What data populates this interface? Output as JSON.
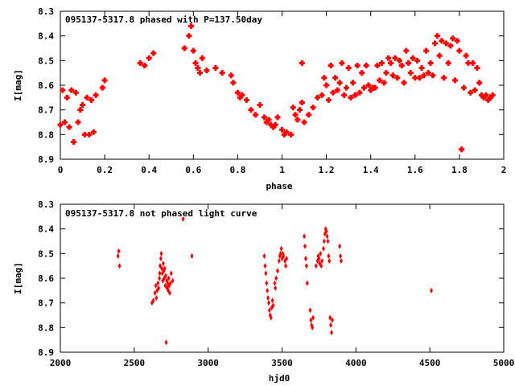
{
  "chart_data": [
    {
      "type": "scatter",
      "title": "095137-5317.8 phased with P=137.50day",
      "xlabel": "phase",
      "ylabel": "I[mag]",
      "xlim": [
        0,
        2
      ],
      "ylim": [
        8.9,
        8.3
      ],
      "y_inverted": true,
      "xticks": [
        "0",
        "0.2",
        "0.4",
        "0.6",
        "0.8",
        "1",
        "1.2",
        "1.4",
        "1.6",
        "1.8",
        "2"
      ],
      "yticks": [
        "8.3",
        "8.4",
        "8.5",
        "8.6",
        "8.7",
        "8.8",
        "8.9"
      ],
      "marker_color": "#ff0000",
      "marker": "cross",
      "points": [
        [
          0.0,
          8.76
        ],
        [
          0.01,
          8.62
        ],
        [
          0.02,
          8.75
        ],
        [
          0.03,
          8.65
        ],
        [
          0.04,
          8.77
        ],
        [
          0.05,
          8.62
        ],
        [
          0.06,
          8.83
        ],
        [
          0.07,
          8.63
        ],
        [
          0.08,
          8.75
        ],
        [
          0.09,
          8.7
        ],
        [
          0.1,
          8.68
        ],
        [
          0.11,
          8.8
        ],
        [
          0.12,
          8.65
        ],
        [
          0.13,
          8.8
        ],
        [
          0.14,
          8.66
        ],
        [
          0.15,
          8.79
        ],
        [
          0.16,
          8.64
        ],
        [
          0.19,
          8.61
        ],
        [
          0.2,
          8.58
        ],
        [
          0.36,
          8.51
        ],
        [
          0.38,
          8.52
        ],
        [
          0.4,
          8.49
        ],
        [
          0.42,
          8.47
        ],
        [
          0.56,
          8.45
        ],
        [
          0.58,
          8.4
        ],
        [
          0.59,
          8.36
        ],
        [
          0.6,
          8.46
        ],
        [
          0.61,
          8.51
        ],
        [
          0.62,
          8.53
        ],
        [
          0.63,
          8.55
        ],
        [
          0.64,
          8.49
        ],
        [
          0.66,
          8.54
        ],
        [
          0.7,
          8.53
        ],
        [
          0.73,
          8.55
        ],
        [
          0.77,
          8.56
        ],
        [
          0.78,
          8.59
        ],
        [
          0.8,
          8.63
        ],
        [
          0.81,
          8.65
        ],
        [
          0.82,
          8.64
        ],
        [
          0.84,
          8.66
        ],
        [
          0.86,
          8.7
        ],
        [
          0.88,
          8.72
        ],
        [
          0.9,
          8.68
        ],
        [
          0.92,
          8.73
        ],
        [
          0.93,
          8.75
        ],
        [
          0.94,
          8.74
        ],
        [
          0.95,
          8.76
        ],
        [
          0.96,
          8.77
        ],
        [
          0.97,
          8.76
        ],
        [
          0.98,
          8.73
        ],
        [
          1.0,
          8.78
        ],
        [
          1.01,
          8.8
        ],
        [
          1.02,
          8.79
        ],
        [
          1.04,
          8.8
        ],
        [
          1.05,
          8.69
        ],
        [
          1.06,
          8.72
        ],
        [
          1.07,
          8.74
        ],
        [
          1.08,
          8.7
        ],
        [
          1.09,
          8.51
        ],
        [
          1.09,
          8.67
        ],
        [
          1.1,
          8.75
        ],
        [
          1.12,
          8.72
        ],
        [
          1.14,
          8.69
        ],
        [
          1.16,
          8.65
        ],
        [
          1.18,
          8.64
        ],
        [
          1.19,
          8.57
        ],
        [
          1.2,
          8.6
        ],
        [
          1.21,
          8.66
        ],
        [
          1.22,
          8.52
        ],
        [
          1.23,
          8.63
        ],
        [
          1.24,
          8.57
        ],
        [
          1.25,
          8.62
        ],
        [
          1.26,
          8.59
        ],
        [
          1.27,
          8.51
        ],
        [
          1.28,
          8.64
        ],
        [
          1.29,
          8.61
        ],
        [
          1.3,
          8.53
        ],
        [
          1.31,
          8.65
        ],
        [
          1.32,
          8.59
        ],
        [
          1.33,
          8.64
        ],
        [
          1.34,
          8.52
        ],
        [
          1.35,
          8.63
        ],
        [
          1.36,
          8.55
        ],
        [
          1.37,
          8.61
        ],
        [
          1.38,
          8.52
        ],
        [
          1.39,
          8.6
        ],
        [
          1.4,
          8.62
        ],
        [
          1.41,
          8.61
        ],
        [
          1.42,
          8.61
        ],
        [
          1.43,
          8.52
        ],
        [
          1.44,
          8.58
        ],
        [
          1.45,
          8.51
        ],
        [
          1.46,
          8.59
        ],
        [
          1.47,
          8.55
        ],
        [
          1.48,
          8.49
        ],
        [
          1.49,
          8.51
        ],
        [
          1.5,
          8.56
        ],
        [
          1.51,
          8.49
        ],
        [
          1.52,
          8.57
        ],
        [
          1.53,
          8.5
        ],
        [
          1.54,
          8.52
        ],
        [
          1.55,
          8.59
        ],
        [
          1.56,
          8.46
        ],
        [
          1.57,
          8.51
        ],
        [
          1.58,
          8.55
        ],
        [
          1.59,
          8.49
        ],
        [
          1.6,
          8.57
        ],
        [
          1.61,
          8.5
        ],
        [
          1.62,
          8.57
        ],
        [
          1.63,
          8.53
        ],
        [
          1.64,
          8.56
        ],
        [
          1.65,
          8.46
        ],
        [
          1.66,
          8.55
        ],
        [
          1.67,
          8.51
        ],
        [
          1.68,
          8.56
        ],
        [
          1.69,
          8.43
        ],
        [
          1.7,
          8.4
        ],
        [
          1.71,
          8.48
        ],
        [
          1.72,
          8.42
        ],
        [
          1.73,
          8.57
        ],
        [
          1.74,
          8.43
        ],
        [
          1.75,
          8.51
        ],
        [
          1.76,
          8.44
        ],
        [
          1.77,
          8.41
        ],
        [
          1.78,
          8.58
        ],
        [
          1.79,
          8.42
        ],
        [
          1.8,
          8.46
        ],
        [
          1.81,
          8.86
        ],
        [
          1.82,
          8.61
        ],
        [
          1.83,
          8.48
        ],
        [
          1.84,
          8.51
        ],
        [
          1.85,
          8.63
        ],
        [
          1.86,
          8.51
        ],
        [
          1.87,
          8.62
        ],
        [
          1.88,
          8.53
        ],
        [
          1.89,
          8.59
        ],
        [
          1.9,
          8.64
        ],
        [
          1.91,
          8.65
        ],
        [
          1.92,
          8.64
        ],
        [
          1.93,
          8.66
        ],
        [
          1.94,
          8.65
        ],
        [
          1.95,
          8.64
        ]
      ]
    },
    {
      "type": "scatter",
      "title": "095137-5317.8 not phased light curve",
      "xlabel": "hjd0",
      "ylabel": "I[mag]",
      "xlim": [
        2000,
        5000
      ],
      "ylim": [
        8.9,
        8.3
      ],
      "y_inverted": true,
      "xticks": [
        "2000",
        "2500",
        "3000",
        "3500",
        "4000",
        "4500",
        "5000"
      ],
      "yticks": [
        "8.3",
        "8.4",
        "8.5",
        "8.6",
        "8.7",
        "8.8",
        "8.9"
      ],
      "marker_color": "#ff0000",
      "marker": "diamond",
      "points": [
        [
          2390,
          8.51
        ],
        [
          2395,
          8.49
        ],
        [
          2400,
          8.55
        ],
        [
          2620,
          8.7
        ],
        [
          2630,
          8.69
        ],
        [
          2640,
          8.66
        ],
        [
          2645,
          8.63
        ],
        [
          2650,
          8.68
        ],
        [
          2655,
          8.65
        ],
        [
          2660,
          8.62
        ],
        [
          2665,
          8.64
        ],
        [
          2670,
          8.6
        ],
        [
          2672,
          8.58
        ],
        [
          2675,
          8.55
        ],
        [
          2680,
          8.52
        ],
        [
          2683,
          8.5
        ],
        [
          2686,
          8.56
        ],
        [
          2690,
          8.58
        ],
        [
          2693,
          8.61
        ],
        [
          2696,
          8.54
        ],
        [
          2700,
          8.57
        ],
        [
          2703,
          8.6
        ],
        [
          2706,
          8.56
        ],
        [
          2710,
          8.63
        ],
        [
          2713,
          8.59
        ],
        [
          2716,
          8.86
        ],
        [
          2720,
          8.61
        ],
        [
          2723,
          8.64
        ],
        [
          2726,
          8.62
        ],
        [
          2730,
          8.65
        ],
        [
          2733,
          8.6
        ],
        [
          2736,
          8.63
        ],
        [
          2740,
          8.66
        ],
        [
          2745,
          8.62
        ],
        [
          2750,
          8.58
        ],
        [
          2760,
          8.61
        ],
        [
          2830,
          8.36
        ],
        [
          2890,
          8.51
        ],
        [
          3380,
          8.51
        ],
        [
          3385,
          8.55
        ],
        [
          3390,
          8.58
        ],
        [
          3395,
          8.62
        ],
        [
          3400,
          8.65
        ],
        [
          3405,
          8.68
        ],
        [
          3410,
          8.7
        ],
        [
          3415,
          8.73
        ],
        [
          3420,
          8.75
        ],
        [
          3425,
          8.76
        ],
        [
          3430,
          8.72
        ],
        [
          3435,
          8.69
        ],
        [
          3440,
          8.71
        ],
        [
          3450,
          8.62
        ],
        [
          3455,
          8.64
        ],
        [
          3460,
          8.6
        ],
        [
          3470,
          8.57
        ],
        [
          3480,
          8.53
        ],
        [
          3485,
          8.51
        ],
        [
          3490,
          8.5
        ],
        [
          3495,
          8.48
        ],
        [
          3500,
          8.52
        ],
        [
          3505,
          8.5
        ],
        [
          3510,
          8.51
        ],
        [
          3520,
          8.53
        ],
        [
          3525,
          8.55
        ],
        [
          3530,
          8.52
        ],
        [
          3650,
          8.43
        ],
        [
          3655,
          8.47
        ],
        [
          3660,
          8.52
        ],
        [
          3665,
          8.55
        ],
        [
          3670,
          8.62
        ],
        [
          3690,
          8.73
        ],
        [
          3695,
          8.77
        ],
        [
          3700,
          8.79
        ],
        [
          3705,
          8.8
        ],
        [
          3710,
          8.76
        ],
        [
          3730,
          8.55
        ],
        [
          3740,
          8.53
        ],
        [
          3745,
          8.51
        ],
        [
          3750,
          8.52
        ],
        [
          3755,
          8.54
        ],
        [
          3760,
          8.5
        ],
        [
          3765,
          8.55
        ],
        [
          3770,
          8.53
        ],
        [
          3780,
          8.48
        ],
        [
          3785,
          8.45
        ],
        [
          3790,
          8.42
        ],
        [
          3795,
          8.4
        ],
        [
          3800,
          8.41
        ],
        [
          3805,
          8.43
        ],
        [
          3810,
          8.45
        ],
        [
          3815,
          8.51
        ],
        [
          3820,
          8.53
        ],
        [
          3825,
          8.76
        ],
        [
          3830,
          8.79
        ],
        [
          3835,
          8.82
        ],
        [
          3840,
          8.77
        ],
        [
          3890,
          8.47
        ],
        [
          3895,
          8.51
        ],
        [
          3900,
          8.53
        ],
        [
          4510,
          8.65
        ]
      ]
    }
  ]
}
